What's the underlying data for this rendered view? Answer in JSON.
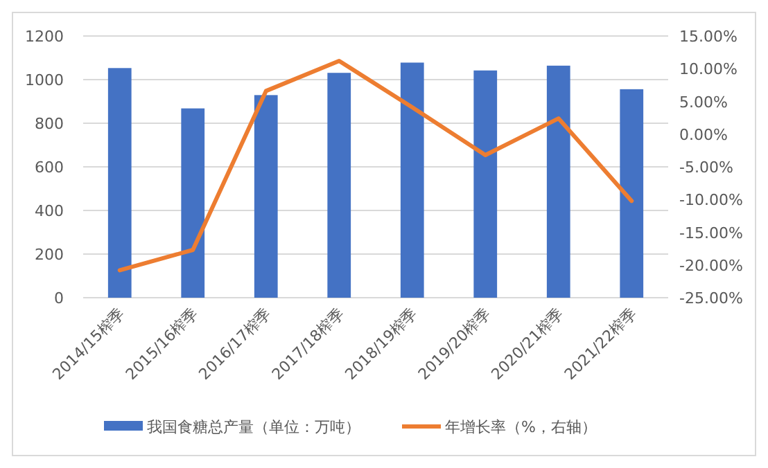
{
  "chart_data": {
    "type": "bar",
    "categories": [
      "2014/15榨季",
      "2015/16榨季",
      "2016/17榨季",
      "2017/18榨季",
      "2018/19榨季",
      "2019/20榨季",
      "2020/21榨季",
      "2021/22榨季"
    ],
    "series": [
      {
        "name": "我国食糖总产量（单位：万吨）",
        "color": "#4472c4",
        "values": [
          1053,
          868,
          929,
          1031,
          1078,
          1042,
          1064,
          956
        ]
      },
      {
        "name": "年增长率（%，右轴）",
        "type": "line",
        "axis": "y2",
        "color": "#ed7d31",
        "values": [
          -20.8,
          -17.7,
          6.6,
          11.2,
          4.1,
          -3.2,
          2.4,
          -10.2
        ]
      }
    ],
    "ylim": [
      0,
      1200
    ],
    "yticks": [
      0,
      200,
      400,
      600,
      800,
      1000,
      1200
    ],
    "y2lim": [
      -25,
      15
    ],
    "y2ticks": [
      {
        "value": -25,
        "label": "-25.00%"
      },
      {
        "value": -20,
        "label": "-20.00%"
      },
      {
        "value": -15,
        "label": "-15.00%"
      },
      {
        "value": -10,
        "label": "-10.00%"
      },
      {
        "value": -5,
        "label": "-5.00%"
      },
      {
        "value": 0,
        "label": "0.00%"
      },
      {
        "value": 5,
        "label": "5.00%"
      },
      {
        "value": 10,
        "label": "10.00%"
      },
      {
        "value": 15,
        "label": "15.00%"
      }
    ],
    "grid": "y",
    "legend": "bottom",
    "marker": "none",
    "line_style": "solid"
  }
}
